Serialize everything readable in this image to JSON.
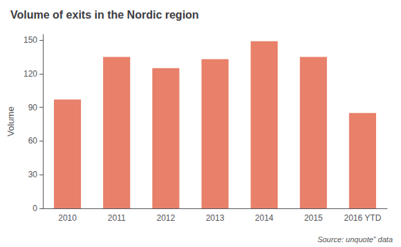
{
  "chart_data": {
    "type": "bar",
    "title": "Volume of exits in the Nordic region",
    "categories": [
      "2010",
      "2011",
      "2012",
      "2013",
      "2014",
      "2015",
      "2016 YTD"
    ],
    "values": [
      97,
      135,
      125,
      133,
      149,
      135,
      85
    ],
    "color": "#e8806a",
    "ylabel": "Volume",
    "ylim": [
      0,
      155
    ],
    "yticks": [
      0,
      30,
      60,
      90,
      120,
      150
    ],
    "grid": false,
    "annotation": "Source: unquote” data"
  }
}
